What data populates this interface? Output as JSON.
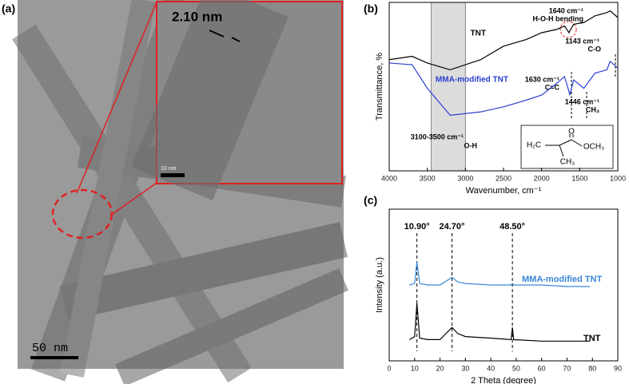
{
  "panels": {
    "a": {
      "label": "(a)",
      "inset_label": "2.10 nm",
      "inset_scale": "10 nm",
      "scale": "50 nm"
    }
  },
  "chart_data": [
    {
      "type": "line",
      "panel": "(b)",
      "xlabel": "Wavenumber, cm⁻¹",
      "ylabel": "Transmittance, %",
      "xlim": [
        4000,
        1000
      ],
      "xticks": [
        4000,
        3500,
        3000,
        2500,
        2000,
        1500,
        1000
      ],
      "ylim": [
        0,
        100
      ],
      "x": [
        4000,
        3700,
        3500,
        3200,
        2800,
        2500,
        2200,
        2000,
        1800,
        1700,
        1640,
        1630,
        1580,
        1446,
        1300,
        1143,
        1100,
        1000
      ],
      "series": [
        {
          "name": "TNT",
          "color": "#000000",
          "values": [
            66,
            68,
            64,
            60,
            66,
            74,
            78,
            82,
            84,
            86,
            82,
            83,
            87,
            88,
            92,
            94,
            95,
            91
          ]
        },
        {
          "name": "MMA-modified TNT",
          "color": "#2a3fd0",
          "values": [
            64,
            63,
            49,
            33,
            35,
            38,
            42,
            45,
            52,
            56,
            47,
            45,
            54,
            49,
            58,
            60,
            65,
            61
          ]
        }
      ],
      "band": [
        3450,
        3000
      ],
      "annotations": [
        "1640 cm⁻¹",
        "H-O-H bending",
        "1143 cm⁻¹",
        "C-O",
        "1630 cm⁻¹",
        "C=C",
        "1446 cm⁻¹",
        "CH₃",
        "3100-3500 cm⁻¹",
        "O-H"
      ],
      "structure": [
        "H₂C",
        "O",
        "OCH₃",
        "CH₃"
      ]
    },
    {
      "type": "line",
      "panel": "(c)",
      "xlabel": "2 Theta (degree)",
      "ylabel": "Intensity (a.u.)",
      "xlim": [
        0,
        90
      ],
      "xticks": [
        0,
        10,
        20,
        30,
        40,
        50,
        60,
        70,
        80,
        90
      ],
      "ylim": [
        0,
        100
      ],
      "x": [
        8,
        10,
        10.9,
        12,
        15,
        20,
        24.7,
        27,
        30,
        40,
        48,
        48.5,
        49,
        60,
        70,
        79
      ],
      "series": [
        {
          "name": "MMA-modified TNT",
          "color": "#3a86d8",
          "values": [
            50,
            51,
            65,
            51,
            50,
            50,
            55,
            52,
            51,
            50,
            50,
            51,
            50,
            50,
            49,
            49
          ]
        },
        {
          "name": "TNT",
          "color": "#000000",
          "values": [
            14,
            16,
            38,
            15,
            14,
            14,
            22,
            18,
            16,
            15,
            14,
            22,
            14,
            13,
            13,
            13
          ]
        }
      ],
      "peaks": [
        10.9,
        24.7,
        48.5
      ],
      "peak_labels": [
        "10.90°",
        "24.70°",
        "48.50°"
      ]
    }
  ]
}
